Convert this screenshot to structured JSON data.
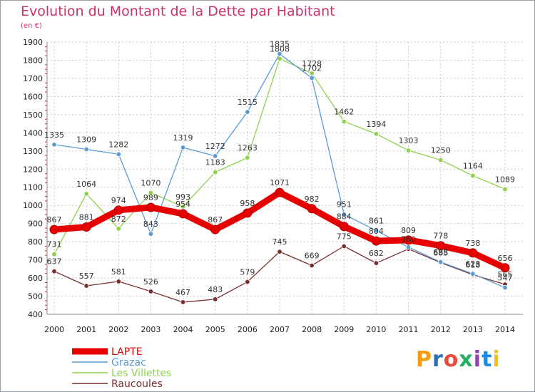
{
  "header": {
    "title": "Evolution du Montant de la Dette par Habitant",
    "subtitle": "(en €)"
  },
  "logo": {
    "text": "Proxiti",
    "colors": [
      "#f39c12",
      "#2b6fb6",
      "#e74c3c",
      "#27ae60",
      "#8e44ad",
      "#1e88e5",
      "#f1c40f"
    ]
  },
  "chart_data": {
    "type": "line",
    "title": "Evolution du Montant de la Dette par Habitant",
    "subtitle": "(en €)",
    "x": [
      "2000",
      "2001",
      "2002",
      "2003",
      "2004",
      "2005",
      "2006",
      "2007",
      "2008",
      "2009",
      "2010",
      "2011",
      "2012",
      "2013",
      "2014"
    ],
    "ylim": [
      400,
      1900
    ],
    "yticks": [
      "400",
      "500",
      "600",
      "700",
      "800",
      "900",
      "1000",
      "1100",
      "1200",
      "1300",
      "1400",
      "1500",
      "1600",
      "1700",
      "1800",
      "1900"
    ],
    "grid": true,
    "legend_position": "bottom-left",
    "series": [
      {
        "name": "LAPTE",
        "color": "#e60000",
        "values": [
          867,
          881,
          974,
          989,
          954,
          867,
          958,
          1071,
          982,
          884,
          804,
          809,
          778,
          738,
          656
        ],
        "labels": [
          "867",
          "881",
          "974",
          "989",
          "954",
          "867",
          "958",
          "1071",
          "982",
          "884",
          "804",
          "809",
          "778",
          "738",
          "656"
        ]
      },
      {
        "name": "Grazac",
        "color": "#5b9bd5",
        "values": [
          1335,
          1309,
          1282,
          843,
          1319,
          1272,
          1515,
          1835,
          1702,
          951,
          861,
          770,
          688,
          623,
          547
        ],
        "labels": [
          "1335",
          "1309",
          "1282",
          "843",
          "1319",
          "1272",
          "1515",
          "1835",
          "1702",
          "951",
          "861",
          "",
          "688",
          "623",
          "547"
        ]
      },
      {
        "name": "Les Villettes",
        "color": "#8fd14f",
        "values": [
          731,
          1064,
          872,
          1070,
          993,
          1183,
          1263,
          1808,
          1728,
          1462,
          1394,
          1303,
          1250,
          1164,
          1089
        ],
        "labels": [
          "731",
          "1064",
          "872",
          "1070",
          "993",
          "1183",
          "1263",
          "1808",
          "1728",
          "1462",
          "1394",
          "1303",
          "1250",
          "1164",
          "1089"
        ]
      },
      {
        "name": "Raucoules",
        "color": "#7a2e2e",
        "values": [
          637,
          557,
          581,
          526,
          467,
          483,
          579,
          745,
          669,
          775,
          682,
          760,
          685,
          618,
          565
        ],
        "labels": [
          "637",
          "557",
          "581",
          "526",
          "467",
          "483",
          "579",
          "745",
          "669",
          "775",
          "682",
          "760",
          "685",
          "618",
          "565"
        ]
      }
    ]
  }
}
